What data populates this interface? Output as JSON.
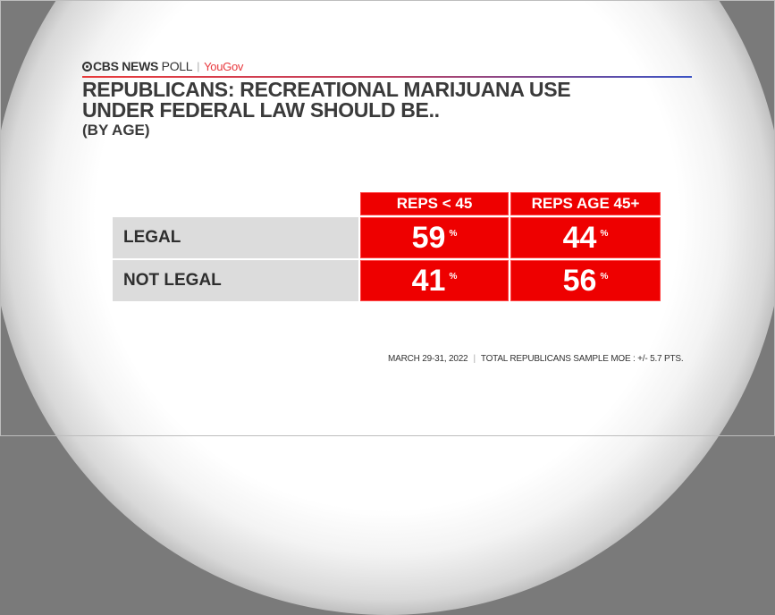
{
  "brand": {
    "network": "CBS NEWS",
    "poll": "POLL",
    "partner": "YouGov"
  },
  "title": {
    "line1": "REPUBLICANS: RECREATIONAL MARIJUANA USE",
    "line2": "UNDER FEDERAL LAW SHOULD BE..",
    "subtitle": "(BY AGE)"
  },
  "chart_data": {
    "type": "table",
    "columns": [
      "REPS < 45",
      "REPS AGE 45+"
    ],
    "rows": [
      {
        "label": "LEGAL",
        "values": [
          59,
          44
        ]
      },
      {
        "label": "NOT LEGAL",
        "values": [
          41,
          56
        ]
      }
    ],
    "unit": "%"
  },
  "footer": {
    "date": "MARCH 29-31, 2022",
    "note": "TOTAL REPUBLICANS SAMPLE MOE : +/- 5.7 PTS."
  },
  "colors": {
    "accent": "#ee0000",
    "label_bg": "#dcdcdc"
  }
}
